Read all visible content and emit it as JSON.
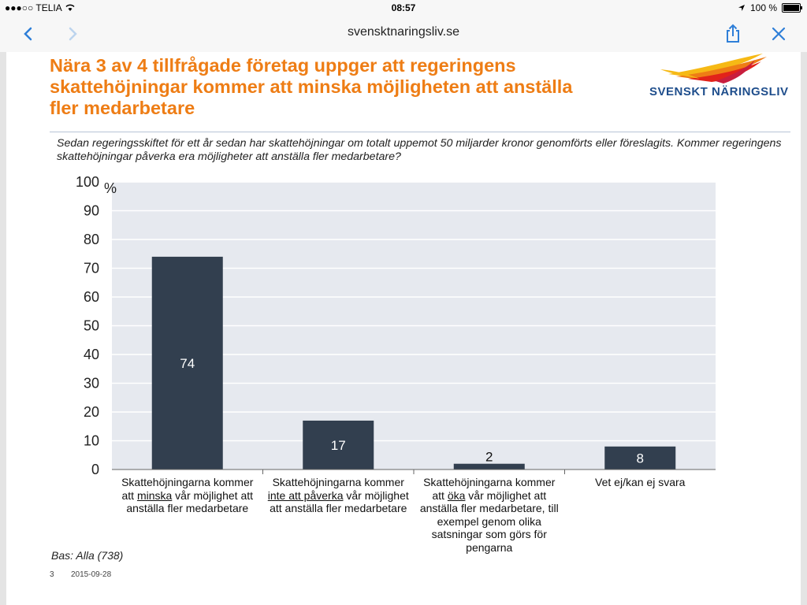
{
  "status_bar": {
    "carrier": "●●●○○ TELIA",
    "time": "08:57",
    "battery": "100 %"
  },
  "browser": {
    "url": "svensktnaringsliv.se"
  },
  "slide": {
    "title": "Nära 3 av 4 tillfrågade företag uppger att regeringens skattehöjningar kommer att minska möjligheten att anställa fler medarbetare",
    "logo_text": "SVENSKT NÄRINGSLIV",
    "question": "Sedan regeringsskiftet för ett år sedan har skattehöjningar om totalt uppemot 50 miljarder kronor genomförts eller föreslagits. Kommer regeringens skattehöjningar påverka era möjligheter att anställa fler medarbetare?",
    "base": "Bas: Alla (738)",
    "slide_number": "3",
    "date": "2015-09-28"
  },
  "chart_data": {
    "type": "bar",
    "ylabel": "%",
    "ylim": [
      0,
      100
    ],
    "yticks": [
      0,
      10,
      20,
      30,
      40,
      50,
      60,
      70,
      80,
      90,
      100
    ],
    "grid": true,
    "categories": [
      {
        "parts": [
          "Skattehöjningarna kommer att ",
          "minska",
          " vår möjlighet att anställa fler medarbetare"
        ]
      },
      {
        "parts": [
          "Skattehöjningarna kommer ",
          "inte att påverka",
          " vår möjlighet att anställa fler medarbetare"
        ]
      },
      {
        "parts": [
          "Skattehöjningarna kommer att ",
          "öka",
          " vår möjlighet att anställa fler medarbetare, till exempel genom olika satsningar som görs för pengarna"
        ]
      },
      {
        "parts": [
          "Vet ej/kan ej svara",
          "",
          ""
        ]
      }
    ],
    "values": [
      74,
      17,
      2,
      8
    ],
    "value_labels": [
      "74",
      "17",
      "2",
      "8"
    ],
    "colors": {
      "bar": "#323f4f",
      "plot_bg": "#e6e9ef",
      "grid": "#ffffff"
    }
  }
}
